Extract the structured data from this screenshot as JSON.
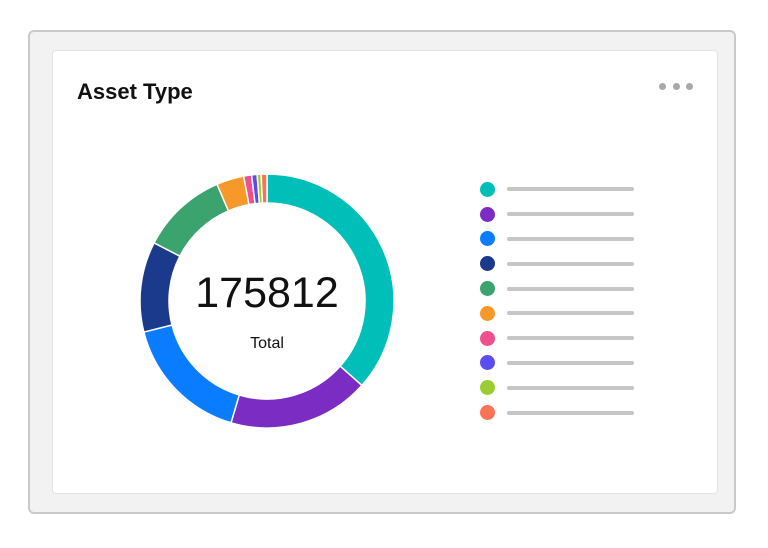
{
  "card": {
    "title": "Asset Type",
    "menu_icon": "more-horizontal-icon"
  },
  "chart_data": {
    "type": "pie",
    "variant": "donut",
    "center": {
      "total": "175812",
      "label": "Total"
    },
    "grid": false,
    "legend_placement": "right",
    "slices": [
      {
        "value": 64300,
        "color": "#00bfb8"
      },
      {
        "value": 31640,
        "color": "#7b2cc3"
      },
      {
        "value": 29000,
        "color": "#0a7cff"
      },
      {
        "value": 20220,
        "color": "#1b3a8c"
      },
      {
        "value": 19330,
        "color": "#3ba36d"
      },
      {
        "value": 6150,
        "color": "#f7982a"
      },
      {
        "value": 1760,
        "color": "#ee4f8e"
      },
      {
        "value": 1230,
        "color": "#5b4cf0"
      },
      {
        "value": 880,
        "color": "#9acd32"
      },
      {
        "value": 1300,
        "color": "#f97456"
      }
    ]
  }
}
